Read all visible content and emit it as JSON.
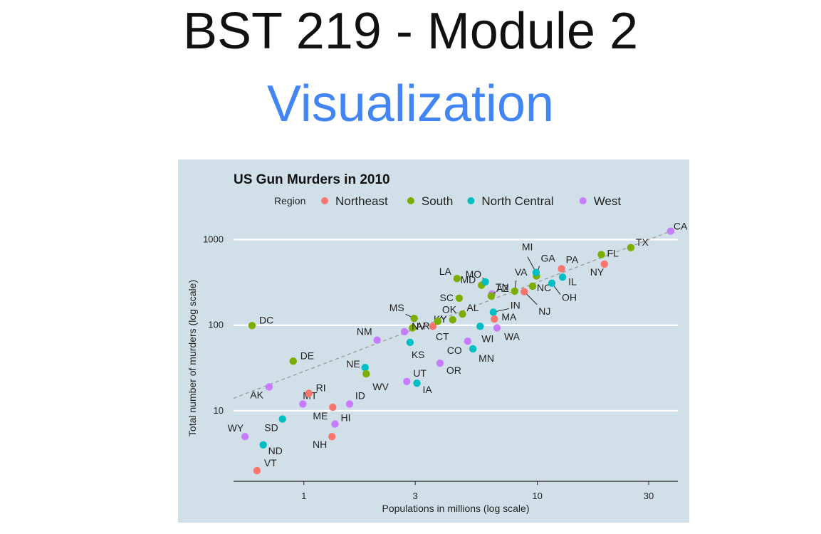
{
  "slide": {
    "title": "BST 219 - Module 2",
    "subtitle": "Visualization",
    "subtitle_color": "#4285f4"
  },
  "chart_data": {
    "type": "scatter",
    "title": "US Gun Murders in 2010",
    "xlabel": "Populations in millions (log scale)",
    "ylabel": "Total number of murders (log scale)",
    "x_scale": "log",
    "y_scale": "log",
    "xlim": [
      0.5,
      40
    ],
    "ylim": [
      1.5,
      1600
    ],
    "x_ticks": [
      {
        "value": 1,
        "label": "1"
      },
      {
        "value": 3,
        "label": "3"
      },
      {
        "value": 10,
        "label": "10"
      },
      {
        "value": 30,
        "label": "30"
      }
    ],
    "y_ticks": [
      {
        "value": 10,
        "label": "10"
      },
      {
        "value": 100,
        "label": "100"
      },
      {
        "value": 1000,
        "label": "1000"
      }
    ],
    "grid": true,
    "background": "#d1e0e8",
    "legend": {
      "title": "Region",
      "placement": "top",
      "entries": [
        {
          "name": "Northeast",
          "color": "#f8766d"
        },
        {
          "name": "South",
          "color": "#7cae00"
        },
        {
          "name": "North Central",
          "color": "#00bfc4"
        },
        {
          "name": "West",
          "color": "#c77cff"
        }
      ]
    },
    "trend_line": {
      "style": "dashed",
      "color": "#9a9a9a",
      "points": [
        [
          0.5,
          14
        ],
        [
          40,
          1350
        ]
      ]
    },
    "points": [
      {
        "label": "AK",
        "x": 0.71,
        "y": 19,
        "region": "West"
      },
      {
        "label": "AL",
        "x": 4.78,
        "y": 135,
        "region": "South"
      },
      {
        "label": "AR",
        "x": 2.92,
        "y": 93,
        "region": "South"
      },
      {
        "label": "AZ",
        "x": 6.39,
        "y": 232,
        "region": "West"
      },
      {
        "label": "CA",
        "x": 37.25,
        "y": 1257,
        "region": "West"
      },
      {
        "label": "CO",
        "x": 5.03,
        "y": 65,
        "region": "West"
      },
      {
        "label": "CT",
        "x": 3.57,
        "y": 97,
        "region": "Northeast"
      },
      {
        "label": "DC",
        "x": 0.6,
        "y": 99,
        "region": "South"
      },
      {
        "label": "DE",
        "x": 0.9,
        "y": 38,
        "region": "South"
      },
      {
        "label": "FL",
        "x": 18.8,
        "y": 669,
        "region": "South"
      },
      {
        "label": "GA",
        "x": 9.92,
        "y": 376,
        "region": "South"
      },
      {
        "label": "HI",
        "x": 1.36,
        "y": 7,
        "region": "West"
      },
      {
        "label": "IA",
        "x": 3.05,
        "y": 21,
        "region": "North Central"
      },
      {
        "label": "ID",
        "x": 1.57,
        "y": 12,
        "region": "West"
      },
      {
        "label": "IL",
        "x": 12.83,
        "y": 364,
        "region": "North Central"
      },
      {
        "label": "IN",
        "x": 6.48,
        "y": 142,
        "region": "North Central"
      },
      {
        "label": "KS",
        "x": 2.85,
        "y": 63,
        "region": "North Central"
      },
      {
        "label": "KY",
        "x": 4.34,
        "y": 116,
        "region": "South"
      },
      {
        "label": "LA",
        "x": 4.53,
        "y": 351,
        "region": "South"
      },
      {
        "label": "MA",
        "x": 6.55,
        "y": 118,
        "region": "Northeast"
      },
      {
        "label": "MD",
        "x": 5.77,
        "y": 293,
        "region": "South"
      },
      {
        "label": "ME",
        "x": 1.33,
        "y": 11,
        "region": "Northeast"
      },
      {
        "label": "MI",
        "x": 9.88,
        "y": 413,
        "region": "North Central"
      },
      {
        "label": "MN",
        "x": 5.3,
        "y": 53,
        "region": "North Central"
      },
      {
        "label": "MO",
        "x": 5.99,
        "y": 321,
        "region": "North Central"
      },
      {
        "label": "MS",
        "x": 2.97,
        "y": 120,
        "region": "South"
      },
      {
        "label": "MT",
        "x": 0.99,
        "y": 12,
        "region": "West"
      },
      {
        "label": "NC",
        "x": 9.54,
        "y": 286,
        "region": "South"
      },
      {
        "label": "ND",
        "x": 0.67,
        "y": 4,
        "region": "North Central"
      },
      {
        "label": "NE",
        "x": 1.83,
        "y": 32,
        "region": "North Central"
      },
      {
        "label": "NH",
        "x": 1.32,
        "y": 5,
        "region": "Northeast"
      },
      {
        "label": "NJ",
        "x": 8.79,
        "y": 246,
        "region": "Northeast"
      },
      {
        "label": "NM",
        "x": 2.06,
        "y": 67,
        "region": "West"
      },
      {
        "label": "NV",
        "x": 2.7,
        "y": 84,
        "region": "West"
      },
      {
        "label": "NY",
        "x": 19.38,
        "y": 517,
        "region": "Northeast"
      },
      {
        "label": "OH",
        "x": 11.54,
        "y": 310,
        "region": "North Central"
      },
      {
        "label": "OK",
        "x": 3.75,
        "y": 111,
        "region": "South"
      },
      {
        "label": "OR",
        "x": 3.83,
        "y": 36,
        "region": "West"
      },
      {
        "label": "PA",
        "x": 12.7,
        "y": 457,
        "region": "Northeast"
      },
      {
        "label": "RI",
        "x": 1.05,
        "y": 16,
        "region": "Northeast"
      },
      {
        "label": "SC",
        "x": 4.63,
        "y": 207,
        "region": "South"
      },
      {
        "label": "SD",
        "x": 0.81,
        "y": 8,
        "region": "North Central"
      },
      {
        "label": "TN",
        "x": 6.35,
        "y": 219,
        "region": "South"
      },
      {
        "label": "TX",
        "x": 25.15,
        "y": 805,
        "region": "South"
      },
      {
        "label": "UT",
        "x": 2.76,
        "y": 22,
        "region": "West"
      },
      {
        "label": "VA",
        "x": 8.0,
        "y": 250,
        "region": "South"
      },
      {
        "label": "VT",
        "x": 0.63,
        "y": 2,
        "region": "Northeast"
      },
      {
        "label": "WA",
        "x": 6.72,
        "y": 93,
        "region": "West"
      },
      {
        "label": "WI",
        "x": 5.69,
        "y": 97,
        "region": "North Central"
      },
      {
        "label": "WV",
        "x": 1.85,
        "y": 27,
        "region": "South"
      },
      {
        "label": "WY",
        "x": 0.56,
        "y": 5,
        "region": "West"
      }
    ]
  }
}
